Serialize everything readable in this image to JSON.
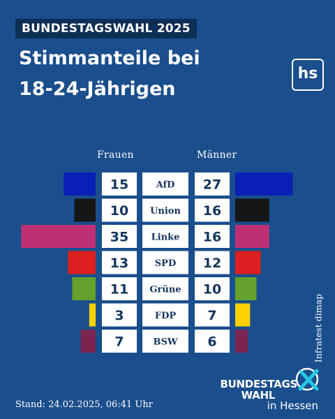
{
  "header": {
    "kicker": "BUNDESTAGSWAHL 2025",
    "title_line1": "Stimmanteile bei",
    "title_line2": "18-24-Jährigen"
  },
  "logo": {
    "text": "hs"
  },
  "source": "Infratest dimap",
  "timestamp": "Stand: 24.02.2025, 06:41 Uhr",
  "brand": {
    "line1": "BUNDESTAGS",
    "line2": "WAHL",
    "line3": "in Hessen",
    "accent": "#25c5e6"
  },
  "colors": {
    "background": "#1a4e8c",
    "kicker_bg": "#0d2e55",
    "cell_text": "#15355e"
  },
  "chart_data": {
    "type": "bar",
    "title": "Stimmanteile bei 18-24-Jährigen",
    "categories": [
      "AfD",
      "Union",
      "Linke",
      "SPD",
      "Grüne",
      "FDP",
      "BSW"
    ],
    "series": [
      {
        "name": "Frauen",
        "values": [
          15,
          10,
          35,
          13,
          11,
          3,
          7
        ]
      },
      {
        "name": "Männer",
        "values": [
          27,
          16,
          16,
          12,
          10,
          7,
          6
        ]
      }
    ],
    "bar_colors": [
      "#0a1fb5",
      "#161616",
      "#be3075",
      "#dc1f1f",
      "#64a12d",
      "#ffd000",
      "#7b2450"
    ]
  }
}
